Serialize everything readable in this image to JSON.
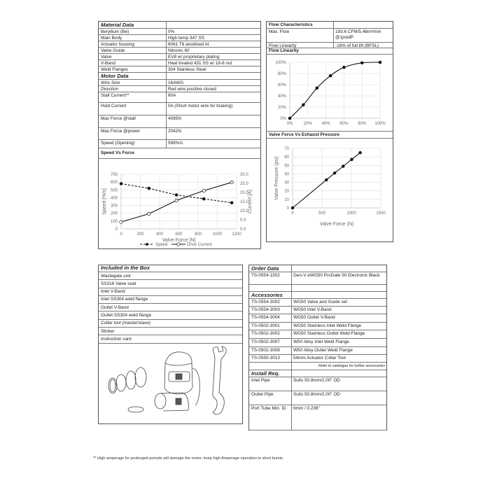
{
  "material": {
    "rows": [
      {
        "k": "Material Data",
        "v": "",
        "style": "hdr"
      },
      {
        "k": "Beryllium (Be)",
        "v": "0%"
      },
      {
        "k": "Main Body",
        "v": "High temp 347 SS"
      },
      {
        "k": "Actuator housing",
        "v": "6061 T6 anodised Al."
      },
      {
        "k": "Valve Guide",
        "v": "Nitronic 60"
      },
      {
        "k": "Valve",
        "v": "EV8 w/ proprietary plating"
      },
      {
        "k": "V-Band",
        "v": "Heat treated 431 SS w/ 18-8 nut"
      },
      {
        "k": "Weld Flanges",
        "v": "304 Stainless Steel"
      },
      {
        "k": "Motor Data",
        "v": "",
        "style": "hdr"
      },
      {
        "k": "Wire Size",
        "v": "16AWG",
        "style": "it"
      },
      {
        "k": "Direction",
        "v": "Red wire positive closed",
        "style": "it"
      },
      {
        "k": "Stall Current**",
        "v": "60A"
      },
      {
        "k": "Hold Current",
        "v": "0A (Short motor wire for braking)"
      },
      {
        "k": "Max Force @stall",
        "v": "4085N"
      },
      {
        "k": "Max Force @power",
        "v": "2042N"
      },
      {
        "k": "Speed (Opening)",
        "v": "598%/s"
      }
    ],
    "chart_title": "Speed Vs Force"
  },
  "flow": {
    "rows": [
      {
        "k": "Flow Characteristics",
        "v": "",
        "style": "sub"
      },
      {
        "k": "Max. Flow",
        "v": "193.6 CFM/5.48m³/min @1psidP"
      },
      {
        "k": "Flow Linearity",
        "v": "-18% of full lift (BFSL)"
      }
    ],
    "chart_title": "Flow Linearity",
    "chart2_title": "Valve Force Vs Exhaust Pressure"
  },
  "box": {
    "title": "Included in the Box",
    "items": [
      "Wastegate unit",
      "SS316 Valve seat",
      "Inlet V-Band",
      "Inlet SS304 weld flange",
      "Outlet V-Band",
      "Outlet SS304 weld flange",
      "Collar tool (master/slave)",
      "Sticker",
      "Instruction card"
    ]
  },
  "order": {
    "rows": [
      {
        "k": "Order Data",
        "v": "",
        "style": "hdr"
      },
      {
        "k": "TS-0554-1502",
        "v": "Gen-V eWG50 ProGate 50 Electronic Black"
      },
      {
        "k": "",
        "v": ""
      },
      {
        "k": "Accessories",
        "v": "",
        "style": "hdr"
      },
      {
        "k": "TS-0554-3002",
        "v": "WG50 Valve and Guide set"
      },
      {
        "k": "TS-0554-3003",
        "v": "WG50 Inlet V-Band"
      },
      {
        "k": "TS-0554-3004",
        "v": "WG50 Outlet V-Band"
      },
      {
        "k": "TS-0502-3001",
        "v": "WG50 Stainless Inlet Weld Flange"
      },
      {
        "k": "TS-0502-3002",
        "v": "WG50 Stainless Outlet Weld Flange"
      },
      {
        "k": "TS-0502-3007",
        "v": "W50 Alloy Inlet Weld Flange"
      },
      {
        "k": "TS-0502-3008",
        "v": "W50 Alloy Outlet Weld Flange"
      },
      {
        "k": "TS-0550-3013",
        "v": "54mm Actuator Collar Tool"
      },
      {
        "k": "",
        "v": "Refer to catalogue for further accessories",
        "style": "ref"
      },
      {
        "k": "Install Req.",
        "v": "",
        "style": "hdr"
      },
      {
        "k": "Inlet Pipe",
        "v": "Suits 50.8mm/2.00\" OD"
      },
      {
        "k": "Outlet Pipe",
        "v": "Suits 50.8mm/2.00\" OD"
      },
      {
        "k": "Port Tube Min. ID",
        "v": "6mm / 0.236\""
      }
    ]
  },
  "footnote": "** High amperage for prolonged periods will damage the motor, keep high Amperage operation to short bursts.",
  "chart_data": [
    {
      "type": "line",
      "title": "Speed Vs Force",
      "xlabel": "Valve Force [N]",
      "ylabel": "Speed [%/s]",
      "y2label": "Current [A]",
      "xlim": [
        0,
        1200
      ],
      "ylim": [
        0,
        700
      ],
      "y2lim": [
        0,
        30
      ],
      "xticks": [
        "0",
        "200",
        "400",
        "600",
        "800",
        "1000",
        "1200"
      ],
      "yticks": [
        "0",
        "100",
        "200",
        "300",
        "400",
        "500",
        "600",
        "700"
      ],
      "y2ticks": [
        "0.0",
        "5.0",
        "10.0",
        "15.0",
        "20.0",
        "25.0",
        "30.0"
      ],
      "grid": true,
      "legend": "bottom",
      "series": [
        {
          "name": "Speed",
          "axis": "left",
          "style": "dashed",
          "marker": "filled",
          "x": [
            0,
            290,
            575,
            860,
            1150
          ],
          "y": [
            580,
            520,
            435,
            385,
            335
          ]
        },
        {
          "name": "Drive Current",
          "axis": "right",
          "style": "solid",
          "marker": "hollow",
          "x": [
            0,
            290,
            575,
            860,
            1150
          ],
          "y": [
            3.8,
            8.3,
            15.6,
            21.0,
            25.6
          ]
        }
      ]
    },
    {
      "type": "line",
      "title": "Flow Linearity",
      "xlim": [
        0,
        100
      ],
      "ylim": [
        0,
        100
      ],
      "xticks": [
        "0%",
        "20%",
        "40%",
        "60%",
        "80%",
        "100%"
      ],
      "yticks": [
        "0%",
        "20%",
        "40%",
        "60%",
        "80%",
        "100%"
      ],
      "grid": true,
      "series": [
        {
          "x": [
            0,
            15,
            30,
            45,
            60,
            80,
            100
          ],
          "y": [
            0,
            24,
            54,
            76,
            91,
            99,
            100
          ]
        }
      ]
    },
    {
      "type": "line",
      "title": "Valve Force Vs Exhaust Pressure",
      "xlabel": "Valve Force (N)",
      "ylabel": "Valve Pressure (psi)",
      "xlim": [
        0,
        1500
      ],
      "ylim": [
        0,
        70
      ],
      "xticks": [
        "0",
        "500",
        "1000",
        "1500"
      ],
      "yticks": [
        "0",
        "10",
        "20",
        "30",
        "40",
        "50",
        "60",
        "70"
      ],
      "grid": true,
      "series": [
        {
          "x": [
            0,
            575,
            715,
            860,
            1005,
            1150
          ],
          "y": [
            0,
            33,
            41,
            49,
            57,
            65
          ]
        }
      ]
    }
  ]
}
